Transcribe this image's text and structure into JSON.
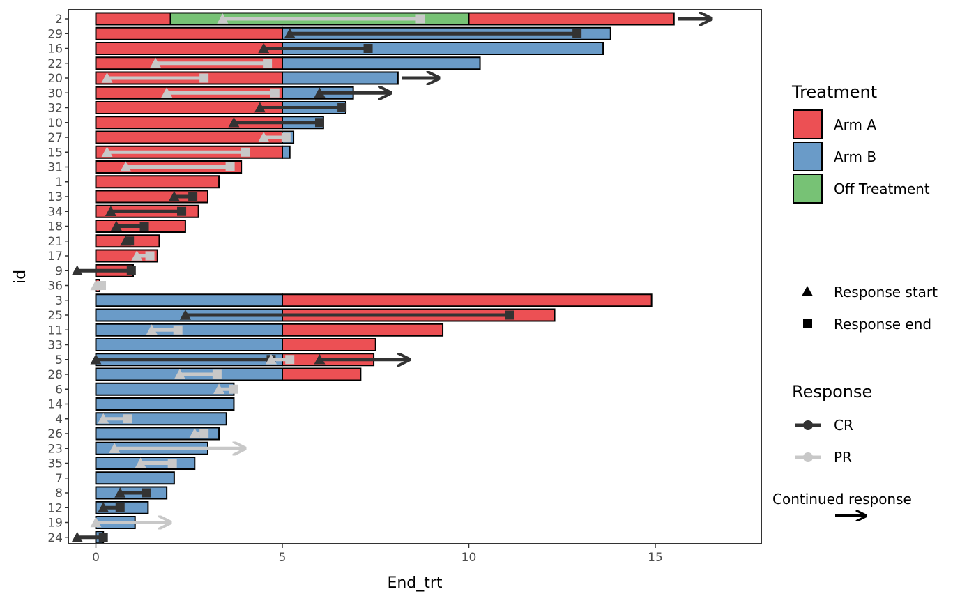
{
  "chart_data": {
    "type": "bar",
    "xlabel": "End_trt",
    "ylabel": "id",
    "xlim": [
      -0.6,
      17.8
    ],
    "x_ticks": [
      0,
      5,
      10,
      15
    ],
    "grid": false,
    "legend_position": "right",
    "colors": {
      "Arm A": "#ec5054",
      "Arm B": "#6a9bc8",
      "Off Treatment": "#77c275",
      "CR": "#333333",
      "PR": "#c8c8c8"
    },
    "legend": {
      "treatment_title": "Treatment",
      "treatment_items": [
        "Arm A",
        "Arm B",
        "Off Treatment"
      ],
      "markers": [
        {
          "shape": "triangle",
          "label": "Response start"
        },
        {
          "shape": "square",
          "label": "Response end"
        }
      ],
      "response_title": "Response",
      "response_items": [
        {
          "label": "CR",
          "color": "#333333"
        },
        {
          "label": "PR",
          "color": "#c8c8c8"
        }
      ],
      "continued_label": "Continued response"
    },
    "subjects": [
      {
        "id": "2",
        "segments": [
          {
            "arm": "Arm A",
            "start": 0,
            "end": 2
          },
          {
            "arm": "Off Treatment",
            "start": 2,
            "end": 10
          },
          {
            "arm": "Arm A",
            "start": 10,
            "end": 15.5
          }
        ],
        "responses": [
          {
            "type": "PR",
            "start": 3.4,
            "end": 8.7
          },
          {
            "type": "CR",
            "start": 15.6,
            "end": 16.5,
            "continued": true,
            "arrow_only": true
          }
        ]
      },
      {
        "id": "29",
        "segments": [
          {
            "arm": "Arm A",
            "start": 0,
            "end": 5
          },
          {
            "arm": "Arm B",
            "start": 5,
            "end": 13.8
          }
        ],
        "responses": [
          {
            "type": "CR",
            "start": 5.2,
            "end": 12.9
          }
        ]
      },
      {
        "id": "16",
        "segments": [
          {
            "arm": "Arm A",
            "start": 0,
            "end": 5
          },
          {
            "arm": "Arm B",
            "start": 5,
            "end": 13.6
          }
        ],
        "responses": [
          {
            "type": "CR",
            "start": 4.5,
            "end": 7.3
          }
        ]
      },
      {
        "id": "22",
        "segments": [
          {
            "arm": "Arm A",
            "start": 0,
            "end": 5
          },
          {
            "arm": "Arm B",
            "start": 5,
            "end": 10.3
          }
        ],
        "responses": [
          {
            "type": "PR",
            "start": 1.6,
            "end": 4.6
          }
        ]
      },
      {
        "id": "20",
        "segments": [
          {
            "arm": "Arm A",
            "start": 0,
            "end": 5
          },
          {
            "arm": "Arm B",
            "start": 5,
            "end": 8.1
          }
        ],
        "responses": [
          {
            "type": "PR",
            "start": 0.3,
            "end": 2.9
          },
          {
            "type": "CR",
            "start": 8.2,
            "end": 9.2,
            "continued": true,
            "arrow_only": true
          }
        ]
      },
      {
        "id": "30",
        "segments": [
          {
            "arm": "Arm A",
            "start": 0,
            "end": 5
          },
          {
            "arm": "Arm B",
            "start": 5,
            "end": 6.9
          }
        ],
        "responses": [
          {
            "type": "PR",
            "start": 1.9,
            "end": 4.8
          },
          {
            "type": "CR",
            "start": 6.0,
            "end": 7.9,
            "continued": true
          }
        ]
      },
      {
        "id": "32",
        "segments": [
          {
            "arm": "Arm A",
            "start": 0,
            "end": 5
          },
          {
            "arm": "Arm B",
            "start": 5,
            "end": 6.7
          }
        ],
        "responses": [
          {
            "type": "CR",
            "start": 4.4,
            "end": 6.6
          }
        ]
      },
      {
        "id": "10",
        "segments": [
          {
            "arm": "Arm A",
            "start": 0,
            "end": 5
          },
          {
            "arm": "Arm B",
            "start": 5,
            "end": 6.1
          }
        ],
        "responses": [
          {
            "type": "CR",
            "start": 3.7,
            "end": 6.0
          }
        ]
      },
      {
        "id": "27",
        "segments": [
          {
            "arm": "Arm A",
            "start": 0,
            "end": 5
          },
          {
            "arm": "Arm B",
            "start": 5,
            "end": 5.3
          }
        ],
        "responses": [
          {
            "type": "PR",
            "start": 4.5,
            "end": 5.1
          }
        ]
      },
      {
        "id": "15",
        "segments": [
          {
            "arm": "Arm A",
            "start": 0,
            "end": 5
          },
          {
            "arm": "Arm B",
            "start": 5,
            "end": 5.2
          }
        ],
        "responses": [
          {
            "type": "PR",
            "start": 0.3,
            "end": 4.0
          }
        ]
      },
      {
        "id": "31",
        "segments": [
          {
            "arm": "Arm A",
            "start": 0,
            "end": 3.9
          }
        ],
        "responses": [
          {
            "type": "PR",
            "start": 0.8,
            "end": 3.6
          }
        ]
      },
      {
        "id": "1",
        "segments": [
          {
            "arm": "Arm A",
            "start": 0,
            "end": 3.3
          }
        ],
        "responses": []
      },
      {
        "id": "13",
        "segments": [
          {
            "arm": "Arm A",
            "start": 0,
            "end": 3.0
          }
        ],
        "responses": [
          {
            "type": "CR",
            "start": 2.1,
            "end": 2.6
          }
        ]
      },
      {
        "id": "34",
        "segments": [
          {
            "arm": "Arm A",
            "start": 0,
            "end": 2.75
          }
        ],
        "responses": [
          {
            "type": "CR",
            "start": 0.4,
            "end": 2.3
          }
        ]
      },
      {
        "id": "18",
        "segments": [
          {
            "arm": "Arm A",
            "start": 0,
            "end": 2.4
          }
        ],
        "responses": [
          {
            "type": "CR",
            "start": 0.55,
            "end": 1.3
          }
        ]
      },
      {
        "id": "21",
        "segments": [
          {
            "arm": "Arm A",
            "start": 0,
            "end": 1.7
          }
        ],
        "responses": [
          {
            "type": "CR",
            "start": 0.8,
            "end": 0.9
          }
        ]
      },
      {
        "id": "17",
        "segments": [
          {
            "arm": "Arm A",
            "start": 0,
            "end": 1.65
          }
        ],
        "responses": [
          {
            "type": "PR",
            "start": 1.1,
            "end": 1.45
          }
        ]
      },
      {
        "id": "9",
        "segments": [
          {
            "arm": "Arm A",
            "start": 0,
            "end": 1.0
          }
        ],
        "responses": [
          {
            "type": "CR",
            "start": -0.5,
            "end": 0.95
          }
        ]
      },
      {
        "id": "36",
        "segments": [
          {
            "arm": "Arm A",
            "start": 0,
            "end": 0.1
          }
        ],
        "responses": [
          {
            "type": "PR",
            "start": 0.0,
            "end": 0.15
          }
        ]
      },
      {
        "id": "3",
        "segments": [
          {
            "arm": "Arm B",
            "start": 0,
            "end": 5
          },
          {
            "arm": "Arm A",
            "start": 5,
            "end": 14.9
          }
        ],
        "responses": []
      },
      {
        "id": "25",
        "segments": [
          {
            "arm": "Arm B",
            "start": 0,
            "end": 5
          },
          {
            "arm": "Arm A",
            "start": 5,
            "end": 12.3
          }
        ],
        "responses": [
          {
            "type": "CR",
            "start": 2.4,
            "end": 11.1
          }
        ]
      },
      {
        "id": "11",
        "segments": [
          {
            "arm": "Arm B",
            "start": 0,
            "end": 5
          },
          {
            "arm": "Arm A",
            "start": 5,
            "end": 9.3
          }
        ],
        "responses": [
          {
            "type": "PR",
            "start": 1.5,
            "end": 2.2
          }
        ]
      },
      {
        "id": "33",
        "segments": [
          {
            "arm": "Arm B",
            "start": 0,
            "end": 5
          },
          {
            "arm": "Arm A",
            "start": 5,
            "end": 7.5
          }
        ],
        "responses": []
      },
      {
        "id": "5",
        "segments": [
          {
            "arm": "Arm B",
            "start": 0,
            "end": 5
          },
          {
            "arm": "Arm A",
            "start": 5,
            "end": 7.45
          }
        ],
        "responses": [
          {
            "type": "CR",
            "start": 0.0,
            "end": 4.7
          },
          {
            "type": "PR",
            "start": 4.7,
            "end": 5.2
          },
          {
            "type": "CR",
            "start": 6.0,
            "end": 8.4,
            "continued": true
          }
        ]
      },
      {
        "id": "28",
        "segments": [
          {
            "arm": "Arm B",
            "start": 0,
            "end": 5
          },
          {
            "arm": "Arm A",
            "start": 5,
            "end": 7.1
          }
        ],
        "responses": [
          {
            "type": "PR",
            "start": 2.25,
            "end": 3.25
          }
        ]
      },
      {
        "id": "6",
        "segments": [
          {
            "arm": "Arm B",
            "start": 0,
            "end": 3.7
          }
        ],
        "responses": [
          {
            "type": "PR",
            "start": 3.3,
            "end": 3.7
          }
        ]
      },
      {
        "id": "14",
        "segments": [
          {
            "arm": "Arm B",
            "start": 0,
            "end": 3.7
          }
        ],
        "responses": []
      },
      {
        "id": "4",
        "segments": [
          {
            "arm": "Arm B",
            "start": 0,
            "end": 3.5
          }
        ],
        "responses": [
          {
            "type": "PR",
            "start": 0.2,
            "end": 0.85
          }
        ]
      },
      {
        "id": "26",
        "segments": [
          {
            "arm": "Arm B",
            "start": 0,
            "end": 3.3
          }
        ],
        "responses": [
          {
            "type": "PR",
            "start": 2.65,
            "end": 2.9
          }
        ]
      },
      {
        "id": "23",
        "segments": [
          {
            "arm": "Arm B",
            "start": 0,
            "end": 3.0
          }
        ],
        "responses": [
          {
            "type": "PR",
            "start": 0.5,
            "end": 4.0,
            "continued": true
          }
        ]
      },
      {
        "id": "35",
        "segments": [
          {
            "arm": "Arm B",
            "start": 0,
            "end": 2.65
          }
        ],
        "responses": [
          {
            "type": "PR",
            "start": 1.2,
            "end": 2.05
          }
        ]
      },
      {
        "id": "7",
        "segments": [
          {
            "arm": "Arm B",
            "start": 0,
            "end": 2.1
          }
        ],
        "responses": []
      },
      {
        "id": "8",
        "segments": [
          {
            "arm": "Arm B",
            "start": 0,
            "end": 1.9
          }
        ],
        "responses": [
          {
            "type": "CR",
            "start": 0.65,
            "end": 1.35
          }
        ]
      },
      {
        "id": "12",
        "segments": [
          {
            "arm": "Arm B",
            "start": 0,
            "end": 1.4
          }
        ],
        "responses": [
          {
            "type": "CR",
            "start": 0.2,
            "end": 0.65
          }
        ]
      },
      {
        "id": "19",
        "segments": [
          {
            "arm": "Arm B",
            "start": 0,
            "end": 1.05
          }
        ],
        "responses": [
          {
            "type": "PR",
            "start": 0.0,
            "end": 2.0,
            "continued": true
          }
        ]
      },
      {
        "id": "24",
        "segments": [
          {
            "arm": "Arm B",
            "start": 0,
            "end": 0.2
          }
        ],
        "responses": [
          {
            "type": "CR",
            "start": -0.5,
            "end": 0.2
          }
        ]
      }
    ]
  }
}
